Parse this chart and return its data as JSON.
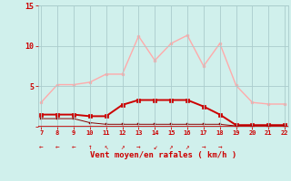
{
  "hours": [
    7,
    8,
    9,
    10,
    11,
    12,
    13,
    14,
    15,
    16,
    17,
    18,
    19,
    20,
    21,
    22
  ],
  "rafales": [
    3.0,
    5.2,
    5.2,
    5.5,
    6.5,
    6.5,
    11.2,
    8.2,
    10.3,
    11.3,
    7.5,
    10.3,
    5.1,
    3.0,
    2.8,
    2.8
  ],
  "vent_moyen": [
    1.5,
    1.5,
    1.5,
    1.3,
    1.3,
    2.7,
    3.3,
    3.3,
    3.3,
    3.3,
    2.5,
    1.5,
    0.2,
    0.2,
    0.2,
    0.2
  ],
  "vent_min": [
    1.0,
    1.0,
    1.0,
    0.5,
    0.3,
    0.3,
    0.3,
    0.3,
    0.3,
    0.3,
    0.3,
    0.3,
    0.1,
    0.1,
    0.1,
    0.1
  ],
  "color_rafales": "#ffaaaa",
  "color_vent_moyen": "#cc0000",
  "color_vent_min": "#880000",
  "bg_color": "#d0f0ec",
  "grid_color": "#aacccc",
  "xlabel": "Vent moyen/en rafales ( km/h )",
  "xlabel_color": "#cc0000",
  "tick_color": "#cc0000",
  "ylim": [
    0,
    15
  ],
  "yticks": [
    0,
    5,
    10,
    15
  ],
  "xlim": [
    7,
    22
  ],
  "wind_dirs": [
    "←",
    "←",
    "←",
    "↑",
    "↖",
    "↗",
    "→",
    "↙",
    "↗",
    "↗",
    "→",
    "→",
    "",
    "",
    "",
    ""
  ]
}
